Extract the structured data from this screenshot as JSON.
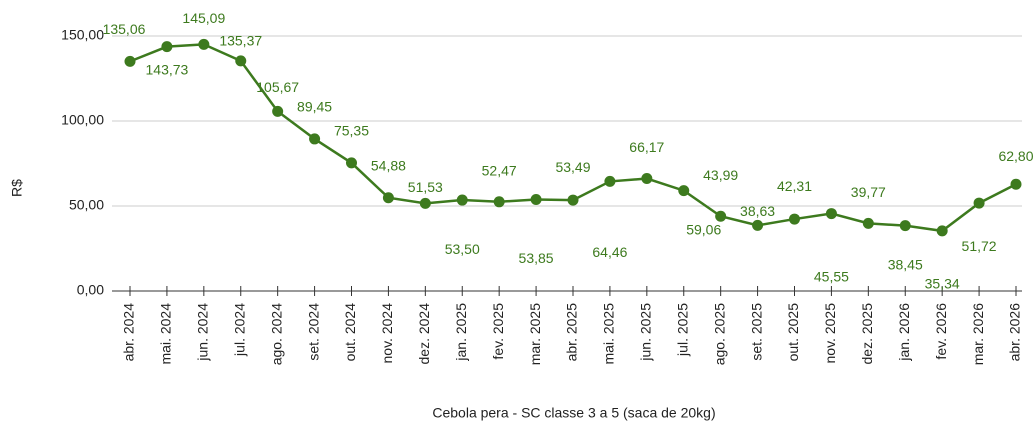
{
  "chart_data": {
    "type": "line",
    "y_label": "R$",
    "x_label": "Cebola pera - SC classe 3 a 5 (saca de 20kg)",
    "categories": [
      "abr. 2024",
      "mai. 2024",
      "jun. 2024",
      "jul. 2024",
      "ago. 2024",
      "set. 2024",
      "out. 2024",
      "nov. 2024",
      "dez. 2024",
      "jan. 2025",
      "fev. 2025",
      "mar. 2025",
      "abr. 2025",
      "mai. 2025",
      "jun. 2025",
      "jul. 2025",
      "ago. 2025",
      "set. 2025",
      "out. 2025",
      "nov. 2025",
      "dez. 2025",
      "jan. 2026",
      "fev. 2026",
      "mar. 2026",
      "abr. 2026"
    ],
    "series": [
      {
        "name": "Cebola pera - SC classe 3 a 5 (saca de 20kg)",
        "color": "#3d7a1e",
        "values": [
          135.06,
          143.73,
          145.09,
          135.37,
          105.67,
          89.45,
          75.35,
          54.88,
          51.53,
          53.5,
          52.47,
          53.85,
          53.49,
          64.46,
          66.17,
          59.06,
          43.99,
          38.63,
          42.31,
          45.55,
          39.77,
          38.45,
          35.34,
          51.72,
          62.8
        ],
        "value_labels": [
          "135,06",
          "143,73",
          "145,09",
          "135,37",
          "105,67",
          "89,45",
          "75,35",
          "54,88",
          "51,53",
          "53,50",
          "52,47",
          "53,85",
          "53,49",
          "64,46",
          "66,17",
          "59,06",
          "43,99",
          "38,63",
          "42,31",
          "45,55",
          "39,77",
          "38,45",
          "35,34",
          "51,72",
          "62,80"
        ]
      }
    ],
    "ylim": [
      0,
      160
    ],
    "yticks": [
      {
        "value": 0,
        "label": "0,00"
      },
      {
        "value": 50,
        "label": "50,00"
      },
      {
        "value": 100,
        "label": "100,00"
      },
      {
        "value": 150,
        "label": "150,00"
      }
    ],
    "grid": true
  }
}
